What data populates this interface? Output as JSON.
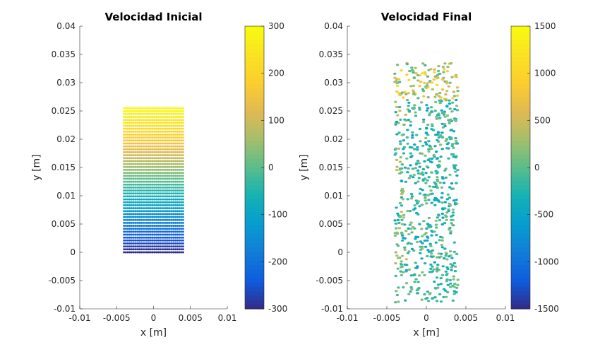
{
  "chart_data": [
    {
      "type": "scatter",
      "title": "Velocidad Inicial",
      "xlabel": "x  [m]",
      "ylabel": "y [m]",
      "xlim": [
        -0.01,
        0.01
      ],
      "ylim": [
        -0.01,
        0.04
      ],
      "xticks": [
        "-0.01",
        "-0.005",
        "0",
        "0.005",
        "0.01"
      ],
      "yticks": [
        "-0.01",
        "-0.005",
        "0",
        "0.005",
        "0.01",
        "0.015",
        "0.02",
        "0.025",
        "0.03",
        "0.035",
        "0.04"
      ],
      "colorbar": {
        "lim": [
          -300,
          300
        ],
        "ticks": [
          "-300",
          "-200",
          "-100",
          "0",
          "100",
          "200",
          "300"
        ]
      },
      "colormap": "parula",
      "particles": {
        "x_range": [
          -0.004,
          0.004
        ],
        "y_range": [
          0,
          0.0255
        ],
        "nx": 32,
        "ny": 50,
        "velocity_range": [
          -300,
          300
        ]
      }
    },
    {
      "type": "scatter",
      "title": "Velocidad Final",
      "xlabel": "x  [m]",
      "ylabel": "y [m]",
      "xlim": [
        -0.01,
        0.01
      ],
      "ylim": [
        -0.01,
        0.04
      ],
      "xticks": [
        "-0.01",
        "-0.005",
        "0",
        "0.005",
        "0.01"
      ],
      "yticks": [
        "-0.01",
        "-0.005",
        "0",
        "0.005",
        "0.01",
        "0.015",
        "0.02",
        "0.025",
        "0.03",
        "0.035",
        "0.04"
      ],
      "colorbar": {
        "lim": [
          -1500,
          1500
        ],
        "ticks": [
          "-1500",
          "-1000",
          "-500",
          "0",
          "500",
          "1000",
          "1500"
        ]
      },
      "colormap": "parula",
      "particles": {
        "x_range": [
          -0.004,
          0.004
        ],
        "y_range": [
          -0.009,
          0.0335
        ],
        "approx_count": 900,
        "velocity_range": [
          -1000,
          1000
        ]
      }
    }
  ]
}
